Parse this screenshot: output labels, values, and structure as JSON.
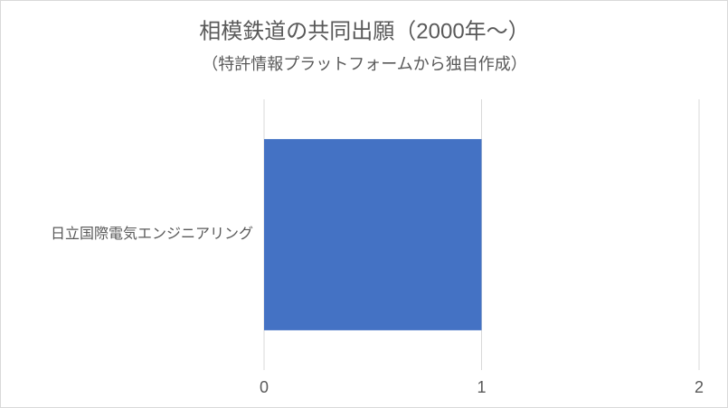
{
  "chart_data": {
    "type": "bar",
    "orientation": "horizontal",
    "title": "相模鉄道の共同出願（2000年～）",
    "subtitle": "（特許情報プラットフォームから独自作成）",
    "categories": [
      "日立国際電気エンジニアリング"
    ],
    "values": [
      1
    ],
    "color": "#4472c4",
    "xlim": [
      0,
      2
    ],
    "xticks": [
      0,
      1,
      2
    ],
    "grid": true
  }
}
